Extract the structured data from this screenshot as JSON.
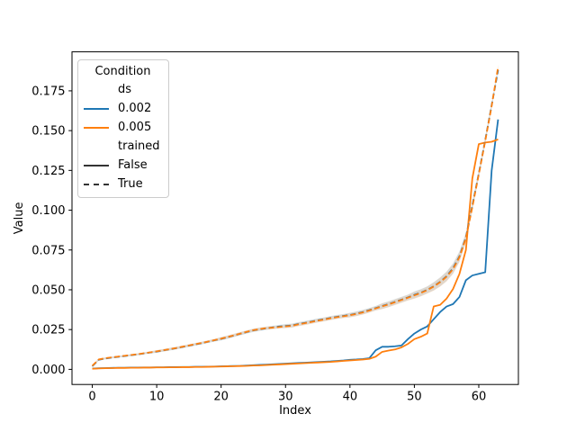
{
  "chart_data": {
    "type": "line",
    "title": "",
    "xlabel": "Index",
    "ylabel": "Value",
    "xlim": [
      -3.15,
      66.15
    ],
    "ylim": [
      -0.0095,
      0.1995
    ],
    "grid": false,
    "legend_position": "upper-left",
    "xticks": {
      "values": [
        0,
        10,
        20,
        30,
        40,
        50,
        60
      ],
      "labels": [
        "0",
        "10",
        "20",
        "30",
        "40",
        "50",
        "60"
      ]
    },
    "yticks": {
      "values": [
        0.0,
        0.025,
        0.05,
        0.075,
        0.1,
        0.125,
        0.15,
        0.175
      ],
      "labels": [
        "0.000",
        "0.025",
        "0.050",
        "0.075",
        "0.100",
        "0.125",
        "0.150",
        "0.175"
      ]
    },
    "x": [
      0,
      1,
      2,
      3,
      4,
      5,
      6,
      7,
      8,
      9,
      10,
      11,
      12,
      13,
      14,
      15,
      16,
      17,
      18,
      19,
      20,
      21,
      22,
      23,
      24,
      25,
      26,
      27,
      28,
      29,
      30,
      31,
      32,
      33,
      34,
      35,
      36,
      37,
      38,
      39,
      40,
      41,
      42,
      43,
      44,
      45,
      46,
      47,
      48,
      49,
      50,
      51,
      52,
      53,
      54,
      55,
      56,
      57,
      58,
      59,
      60,
      61,
      62,
      63
    ],
    "series": [
      {
        "name": "ds=0.002, trained=False",
        "ds": "0.002",
        "trained": "False",
        "color": "#1f77b4",
        "style": "solid",
        "band": false,
        "values": [
          0.0005,
          0.0007,
          0.0008,
          0.0009,
          0.001,
          0.001,
          0.0011,
          0.0011,
          0.0012,
          0.0012,
          0.0013,
          0.0013,
          0.0014,
          0.0014,
          0.0015,
          0.0015,
          0.0016,
          0.0016,
          0.0017,
          0.0018,
          0.0019,
          0.002,
          0.0021,
          0.0022,
          0.0024,
          0.0026,
          0.0028,
          0.003,
          0.0032,
          0.0034,
          0.0036,
          0.0038,
          0.004,
          0.0042,
          0.0044,
          0.0046,
          0.0048,
          0.005,
          0.0053,
          0.0056,
          0.006,
          0.0062,
          0.0065,
          0.007,
          0.012,
          0.0142,
          0.0142,
          0.0145,
          0.015,
          0.019,
          0.0225,
          0.025,
          0.027,
          0.0315,
          0.036,
          0.0395,
          0.041,
          0.0455,
          0.056,
          0.059,
          0.06,
          0.061,
          0.125,
          0.157
        ]
      },
      {
        "name": "ds=0.005, trained=False",
        "ds": "0.005",
        "trained": "False",
        "color": "#ff7f0e",
        "style": "solid",
        "band": false,
        "values": [
          0.0004,
          0.0006,
          0.0007,
          0.0008,
          0.0009,
          0.0009,
          0.001,
          0.001,
          0.0011,
          0.0011,
          0.0012,
          0.0012,
          0.0013,
          0.0013,
          0.0014,
          0.0014,
          0.0015,
          0.0015,
          0.0016,
          0.0017,
          0.0018,
          0.0019,
          0.002,
          0.0021,
          0.0022,
          0.0024,
          0.0025,
          0.0027,
          0.0029,
          0.0031,
          0.0033,
          0.0035,
          0.0037,
          0.0039,
          0.0041,
          0.0043,
          0.0045,
          0.0047,
          0.005,
          0.0053,
          0.0056,
          0.0059,
          0.0062,
          0.0066,
          0.008,
          0.011,
          0.0118,
          0.0125,
          0.0138,
          0.016,
          0.019,
          0.0205,
          0.0225,
          0.0395,
          0.0405,
          0.0445,
          0.0505,
          0.06,
          0.075,
          0.12,
          0.1415,
          0.1425,
          0.143,
          0.1445
        ]
      },
      {
        "name": "ds=0.002, trained=True",
        "ds": "0.002",
        "trained": "True",
        "color": "#1f77b4",
        "style": "dashed",
        "band": true,
        "values": [
          0.002,
          0.006,
          0.0068,
          0.0074,
          0.0079,
          0.0084,
          0.0089,
          0.0094,
          0.01,
          0.0106,
          0.0112,
          0.0119,
          0.0126,
          0.0133,
          0.0141,
          0.0149,
          0.0157,
          0.0165,
          0.0174,
          0.0183,
          0.0192,
          0.0202,
          0.0213,
          0.0224,
          0.0235,
          0.0245,
          0.0252,
          0.0258,
          0.0264,
          0.0269,
          0.0273,
          0.0276,
          0.0285,
          0.0292,
          0.03,
          0.0308,
          0.0315,
          0.0323,
          0.033,
          0.0336,
          0.0342,
          0.035,
          0.036,
          0.0372,
          0.0385,
          0.0398,
          0.041,
          0.0424,
          0.0438,
          0.0452,
          0.0468,
          0.0482,
          0.05,
          0.0522,
          0.055,
          0.0585,
          0.0635,
          0.071,
          0.083,
          0.103,
          0.123,
          0.144,
          0.166,
          0.188
        ]
      },
      {
        "name": "ds=0.005, trained=True",
        "ds": "0.005",
        "trained": "True",
        "color": "#ff7f0e",
        "style": "dashed",
        "band": true,
        "values": [
          0.0022,
          0.0062,
          0.007,
          0.0075,
          0.008,
          0.0085,
          0.009,
          0.0095,
          0.0101,
          0.0107,
          0.0113,
          0.012,
          0.0127,
          0.0134,
          0.0142,
          0.015,
          0.0158,
          0.0166,
          0.0175,
          0.0184,
          0.0193,
          0.0203,
          0.0214,
          0.0225,
          0.0236,
          0.0246,
          0.0253,
          0.0259,
          0.0262,
          0.0266,
          0.027,
          0.0274,
          0.0283,
          0.029,
          0.0298,
          0.0306,
          0.0313,
          0.0321,
          0.0328,
          0.0334,
          0.034,
          0.0348,
          0.0358,
          0.037,
          0.0383,
          0.0396,
          0.0408,
          0.0422,
          0.0436,
          0.045,
          0.0465,
          0.048,
          0.0498,
          0.052,
          0.0548,
          0.0582,
          0.063,
          0.0705,
          0.0825,
          0.102,
          0.1225,
          0.1435,
          0.1655,
          0.19
        ]
      }
    ],
    "band_halfwidths": [
      0.0008,
      0.0006,
      0.0006,
      0.0006,
      0.0006,
      0.0006,
      0.0006,
      0.0006,
      0.0006,
      0.0006,
      0.0008,
      0.0008,
      0.0008,
      0.0008,
      0.0008,
      0.0008,
      0.0008,
      0.0008,
      0.0008,
      0.0008,
      0.001,
      0.001,
      0.001,
      0.001,
      0.001,
      0.001,
      0.001,
      0.001,
      0.001,
      0.001,
      0.0012,
      0.0012,
      0.0012,
      0.0012,
      0.0012,
      0.0012,
      0.0012,
      0.0012,
      0.0012,
      0.0012,
      0.0014,
      0.0014,
      0.0014,
      0.0014,
      0.0014,
      0.0018,
      0.0018,
      0.0018,
      0.0018,
      0.0018,
      0.0022,
      0.0022,
      0.0022,
      0.0026,
      0.0028,
      0.003,
      0.0032,
      0.0032,
      0.003,
      0.0026,
      0.0024,
      0.0022,
      0.0018,
      0.0015
    ],
    "band_opacity": 0.17
  },
  "legend": {
    "title": "Condition",
    "entries": [
      {
        "label": "ds",
        "handle": "none",
        "color": "",
        "style": "solid"
      },
      {
        "label": "0.002",
        "handle": "line",
        "color": "#1f77b4",
        "style": "solid"
      },
      {
        "label": "0.005",
        "handle": "line",
        "color": "#ff7f0e",
        "style": "solid"
      },
      {
        "label": "trained",
        "handle": "none",
        "color": "",
        "style": "solid"
      },
      {
        "label": "False",
        "handle": "line",
        "color": "#333333",
        "style": "solid"
      },
      {
        "label": "True",
        "handle": "line",
        "color": "#333333",
        "style": "dashed"
      }
    ]
  },
  "colors": {
    "accent_blue": "#1f77b4",
    "accent_orange": "#ff7f0e",
    "axis": "#000000",
    "legend_border": "#cccccc",
    "background": "#ffffff"
  }
}
